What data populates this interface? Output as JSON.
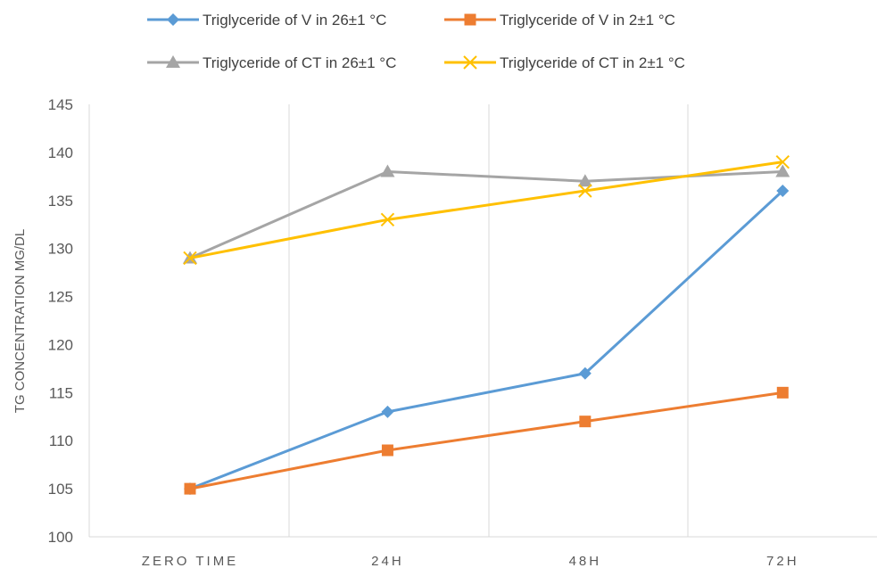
{
  "chart_data": {
    "type": "line",
    "title": "",
    "xlabel": "",
    "ylabel": "TG CONCENTRATION MG/DL",
    "categories": [
      "ZERO TIME",
      "24H",
      "48H",
      "72H"
    ],
    "ylim": [
      100,
      145
    ],
    "yticks": [
      100,
      105,
      110,
      115,
      120,
      125,
      130,
      135,
      140,
      145
    ],
    "grid": "vertical",
    "legend_position": "top",
    "series": [
      {
        "name": "Triglyceride of V in 26±1 °C",
        "color": "#5B9BD5",
        "marker": "diamond",
        "values": [
          105,
          113,
          117,
          136
        ]
      },
      {
        "name": "Triglyceride of V in 2±1 °C",
        "color": "#ED7D31",
        "marker": "square",
        "values": [
          105,
          109,
          112,
          115
        ]
      },
      {
        "name": "Triglyceride of CT in 26±1 °C",
        "color": "#A5A5A5",
        "marker": "triangle",
        "values": [
          129,
          138,
          137,
          138
        ]
      },
      {
        "name": "Triglyceride of CT in 2±1 °C",
        "color": "#FFC000",
        "marker": "x",
        "values": [
          129,
          133,
          136,
          139
        ]
      }
    ]
  }
}
